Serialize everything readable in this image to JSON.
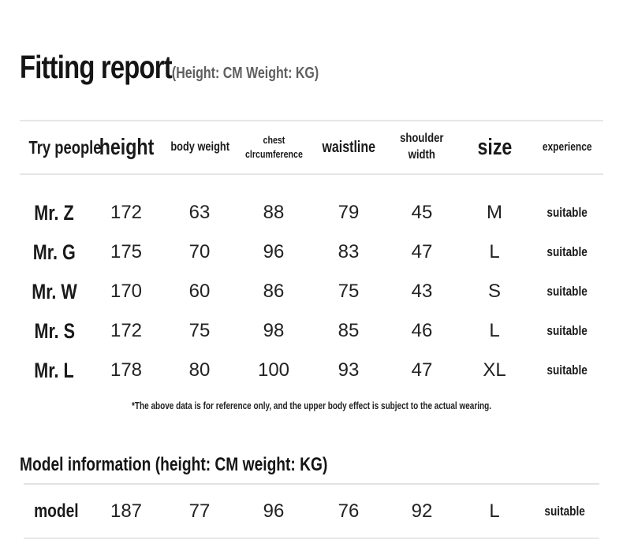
{
  "colors": {
    "text": "#1a1a1a",
    "muted_note": "#5f5f5f",
    "divider": "#e6e6e6",
    "background": "#ffffff"
  },
  "header": {
    "title": "Fitting report",
    "units_note": "(Height: CM Weight: KG)"
  },
  "fitting_table": {
    "columns": {
      "try_people": "Try people",
      "height": "height",
      "body_weight": "body weight",
      "chest_line1": "chest",
      "chest_line2": "clrcumference",
      "waistline": "waistline",
      "shoulder_line1": "shoulder",
      "shoulder_line2": "width",
      "size": "size",
      "experience": "experience"
    },
    "rows": [
      {
        "name": "Mr. Z",
        "height": "172",
        "body_weight": "63",
        "chest": "88",
        "waistline": "79",
        "shoulder_width": "45",
        "size": "M",
        "experience": "suitable"
      },
      {
        "name": "Mr. G",
        "height": "175",
        "body_weight": "70",
        "chest": "96",
        "waistline": "83",
        "shoulder_width": "47",
        "size": "L",
        "experience": "suitable"
      },
      {
        "name": "Mr. W",
        "height": "170",
        "body_weight": "60",
        "chest": "86",
        "waistline": "75",
        "shoulder_width": "43",
        "size": "S",
        "experience": "suitable"
      },
      {
        "name": "Mr. S",
        "height": "172",
        "body_weight": "75",
        "chest": "98",
        "waistline": "85",
        "shoulder_width": "46",
        "size": "L",
        "experience": "suitable"
      },
      {
        "name": "Mr. L",
        "height": "178",
        "body_weight": "80",
        "chest": "100",
        "waistline": "93",
        "shoulder_width": "47",
        "size": "XL",
        "experience": "suitable"
      }
    ],
    "footnote": "*The above data is for reference only, and the upper body effect is subject to the actual wearing."
  },
  "model_section": {
    "title": "Model information (height: CM weight: KG)",
    "row": {
      "name": "model",
      "height": "187",
      "body_weight": "77",
      "chest": "96",
      "waistline": "76",
      "shoulder_width": "92",
      "size": "L",
      "experience": "suitable"
    }
  }
}
